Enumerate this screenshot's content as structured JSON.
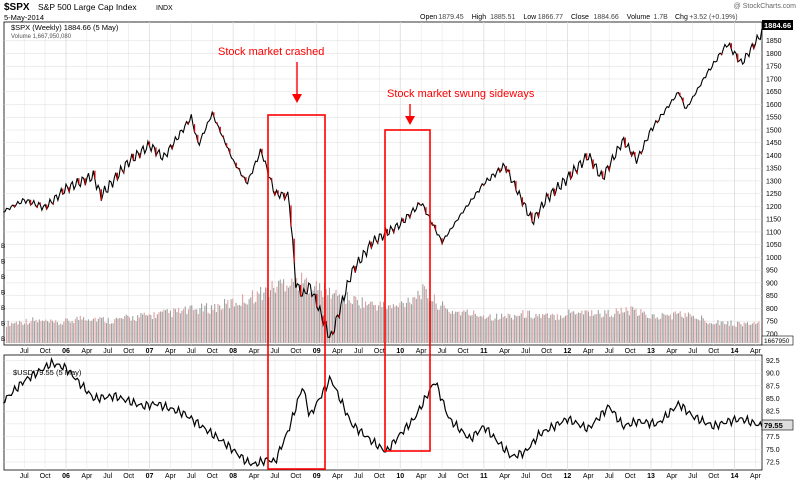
{
  "header": {
    "symbol": "$SPX",
    "name": "S&P 500 Large Cap Index",
    "exchange": "INDX",
    "date": "5-May-2014",
    "watermark": "@ StockCharts.com",
    "ohlc": [
      {
        "label": "Open",
        "value": "1879.45"
      },
      {
        "label": "High",
        "value": "1885.51"
      },
      {
        "label": "Low",
        "value": "1866.77"
      },
      {
        "label": "Close",
        "value": "1884.66"
      },
      {
        "label": "Volume",
        "value": "1.7B"
      },
      {
        "label": "Chg",
        "value": "+3.52 (+0.19%)"
      }
    ]
  },
  "chart_data": [
    {
      "type": "line",
      "panel": "price",
      "legend": "$SPX (Weekly) 1884.66 (5 May)",
      "volume_legend": "Volume 1,667,950,080",
      "last_value_label": "1884.66",
      "volume_label": "1667950",
      "y_ticks": [
        "700",
        "750",
        "800",
        "850",
        "900",
        "950",
        "1000",
        "1050",
        "1100",
        "1150",
        "1200",
        "1250",
        "1300",
        "1350",
        "1400",
        "1450",
        "1500",
        "1550",
        "1600",
        "1650",
        "1700",
        "1750",
        "1800",
        "1850"
      ],
      "ylim": [
        680,
        1900
      ],
      "left_axis_marks": [
        "B",
        "B",
        "B",
        "B",
        "B",
        "B",
        "B"
      ],
      "series": [
        {
          "x": [
            "2005-04",
            "2005-07",
            "2005-10",
            "2006-01",
            "2006-05",
            "2006-06",
            "2006-10",
            "2007-01",
            "2007-03",
            "2007-07",
            "2007-08",
            "2007-10",
            "2008-01",
            "2008-03",
            "2008-05",
            "2008-07",
            "2008-09",
            "2008-10",
            "2008-11",
            "2008-12",
            "2009-01",
            "2009-03",
            "2009-06",
            "2009-09",
            "2010-01",
            "2010-04",
            "2010-07",
            "2010-10",
            "2011-01",
            "2011-04",
            "2011-08",
            "2011-10",
            "2012-01",
            "2012-04",
            "2012-06",
            "2012-09",
            "2012-11",
            "2013-01",
            "2013-05",
            "2013-06",
            "2013-09",
            "2013-12",
            "2014-02",
            "2014-05"
          ],
          "y": [
            1180,
            1225,
            1195,
            1270,
            1320,
            1240,
            1375,
            1440,
            1390,
            1550,
            1440,
            1565,
            1380,
            1290,
            1420,
            1250,
            1240,
            900,
            850,
            890,
            820,
            680,
            940,
            1060,
            1130,
            1215,
            1060,
            1180,
            1290,
            1360,
            1140,
            1230,
            1310,
            1400,
            1310,
            1460,
            1380,
            1500,
            1650,
            1580,
            1720,
            1840,
            1760,
            1885
          ]
        }
      ],
      "volume": {
        "note": "weekly volume bars; higher levels Sep 2008 to Mar 2009 and May 2010",
        "levels": [
          0.3,
          0.35,
          0.3,
          0.4,
          0.35,
          0.4,
          0.45,
          0.5,
          0.55,
          0.65,
          0.8,
          1.0,
          0.85,
          0.7,
          0.6,
          0.55,
          0.8,
          0.5,
          0.45,
          0.4,
          0.45,
          0.4,
          0.5,
          0.45,
          0.5,
          0.4,
          0.45,
          0.35,
          0.3,
          0.3
        ]
      },
      "annotations": [
        {
          "text": "Stock market crashed"
        },
        {
          "text": "Stock market swung sideways"
        }
      ]
    },
    {
      "type": "line",
      "panel": "indicator",
      "legend": "$USD 79.55 (5 May)",
      "last_value_label": "79.55",
      "y_ticks": [
        "72.5",
        "75.0",
        "77.5",
        "80.0",
        "82.5",
        "85.0",
        "87.5",
        "90.0",
        "92.5"
      ],
      "ylim": [
        71.5,
        93
      ],
      "series": [
        {
          "x": [
            "2005-04",
            "2005-07",
            "2005-11",
            "2006-01",
            "2006-05",
            "2006-08",
            "2006-12",
            "2007-02",
            "2007-06",
            "2007-09",
            "2007-12",
            "2008-03",
            "2008-04",
            "2008-06",
            "2008-07",
            "2008-09",
            "2008-11",
            "2008-12",
            "2009-01",
            "2009-03",
            "2009-06",
            "2009-09",
            "2009-11",
            "2010-01",
            "2010-03",
            "2010-06",
            "2010-08",
            "2010-11",
            "2011-01",
            "2011-05",
            "2011-07",
            "2011-09",
            "2012-01",
            "2012-04",
            "2012-07",
            "2012-09",
            "2012-11",
            "2013-02",
            "2013-05",
            "2013-07",
            "2013-10",
            "2013-12",
            "2014-02",
            "2014-05"
          ],
          "y": [
            84.5,
            88.5,
            92,
            91,
            85,
            85.5,
            83.5,
            84,
            82,
            79,
            76,
            72.5,
            72,
            73,
            72.5,
            79,
            87.5,
            81.5,
            84,
            89,
            80,
            76.5,
            74.5,
            78,
            81,
            88.5,
            81,
            77,
            79.5,
            73.5,
            74.5,
            78,
            81,
            79,
            83.5,
            79.5,
            80.5,
            80,
            84,
            81.5,
            79.5,
            80.5,
            81,
            79.55
          ]
        }
      ]
    }
  ],
  "x_axis": {
    "labels": [
      "Jul",
      "Oct",
      "06",
      "Apr",
      "Jul",
      "Oct",
      "07",
      "Apr",
      "Jul",
      "Oct",
      "08",
      "Apr",
      "Jul",
      "Oct",
      "09",
      "Apr",
      "Jul",
      "Oct",
      "10",
      "Apr",
      "Jul",
      "Oct",
      "11",
      "Apr",
      "Jul",
      "Oct",
      "12",
      "Apr",
      "Jul",
      "Oct",
      "13",
      "Apr",
      "Jul",
      "Oct",
      "14",
      "Apr"
    ]
  },
  "colors": {
    "price_line": "#000000",
    "down_bar": "#cc0000",
    "volume_up": "#a0a0a0",
    "volume_down": "#e0a0a0",
    "annotation": "#ff0000",
    "grid": "#dcdcdc",
    "last_value_box": "#dddddd"
  }
}
